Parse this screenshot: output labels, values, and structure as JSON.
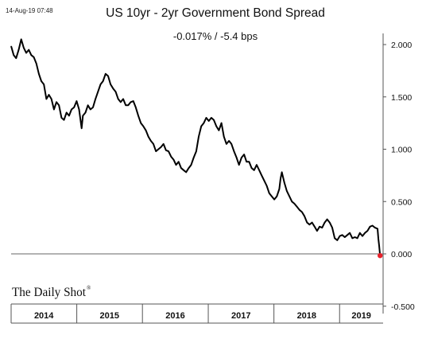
{
  "header": {
    "timestamp": "14-Aug-19 07:48"
  },
  "watermark": {
    "text": "The Daily Shot",
    "mark": "®"
  },
  "chart_data": {
    "type": "line",
    "title": "US 10yr - 2yr Government Bond Spread",
    "subtitle": "-0.017%  /  -5.4 bps",
    "xlabel": "",
    "ylabel": "",
    "ylim": [
      -0.5,
      2.1
    ],
    "y_ticks": [
      "2.000",
      "1.500",
      "1.000",
      "0.500",
      "0.000",
      "-0.500"
    ],
    "y_tick_values": [
      2.0,
      1.5,
      1.0,
      0.5,
      0.0,
      -0.5
    ],
    "x_range": [
      "2014-01-01",
      "2019-08-31"
    ],
    "year_bands": [
      {
        "label": "2014",
        "start": "2014-01-01",
        "end": "2014-12-31"
      },
      {
        "label": "2015",
        "start": "2015-01-01",
        "end": "2015-12-31"
      },
      {
        "label": "2016",
        "start": "2016-01-01",
        "end": "2016-12-31"
      },
      {
        "label": "2017",
        "start": "2017-01-01",
        "end": "2017-12-31"
      },
      {
        "label": "2018",
        "start": "2018-01-01",
        "end": "2018-12-31"
      },
      {
        "label": "2019",
        "start": "2019-01-01",
        "end": "2019-08-31"
      }
    ],
    "series": [
      {
        "line_color": "#000000",
        "points": [
          [
            "2014-01-02",
            1.98
          ],
          [
            "2014-01-15",
            1.9
          ],
          [
            "2014-01-29",
            1.87
          ],
          [
            "2014-02-12",
            1.95
          ],
          [
            "2014-02-26",
            2.05
          ],
          [
            "2014-03-12",
            1.97
          ],
          [
            "2014-03-26",
            1.92
          ],
          [
            "2014-04-09",
            1.95
          ],
          [
            "2014-04-23",
            1.9
          ],
          [
            "2014-05-07",
            1.88
          ],
          [
            "2014-05-21",
            1.82
          ],
          [
            "2014-06-04",
            1.72
          ],
          [
            "2014-06-18",
            1.65
          ],
          [
            "2014-07-02",
            1.62
          ],
          [
            "2014-07-16",
            1.48
          ],
          [
            "2014-07-30",
            1.52
          ],
          [
            "2014-08-13",
            1.48
          ],
          [
            "2014-08-27",
            1.38
          ],
          [
            "2014-09-10",
            1.45
          ],
          [
            "2014-09-24",
            1.42
          ],
          [
            "2014-10-08",
            1.3
          ],
          [
            "2014-10-22",
            1.28
          ],
          [
            "2014-11-05",
            1.35
          ],
          [
            "2014-11-19",
            1.32
          ],
          [
            "2014-12-03",
            1.38
          ],
          [
            "2014-12-17",
            1.4
          ],
          [
            "2014-12-31",
            1.46
          ],
          [
            "2015-01-14",
            1.38
          ],
          [
            "2015-01-28",
            1.2
          ],
          [
            "2015-02-04",
            1.32
          ],
          [
            "2015-02-18",
            1.35
          ],
          [
            "2015-03-04",
            1.42
          ],
          [
            "2015-03-18",
            1.38
          ],
          [
            "2015-04-01",
            1.4
          ],
          [
            "2015-04-15",
            1.48
          ],
          [
            "2015-04-29",
            1.55
          ],
          [
            "2015-05-13",
            1.62
          ],
          [
            "2015-05-27",
            1.65
          ],
          [
            "2015-06-10",
            1.72
          ],
          [
            "2015-06-24",
            1.7
          ],
          [
            "2015-07-08",
            1.62
          ],
          [
            "2015-07-22",
            1.58
          ],
          [
            "2015-08-05",
            1.55
          ],
          [
            "2015-08-19",
            1.48
          ],
          [
            "2015-09-02",
            1.45
          ],
          [
            "2015-09-16",
            1.48
          ],
          [
            "2015-09-30",
            1.42
          ],
          [
            "2015-10-14",
            1.42
          ],
          [
            "2015-10-28",
            1.45
          ],
          [
            "2015-11-11",
            1.46
          ],
          [
            "2015-11-25",
            1.4
          ],
          [
            "2015-12-09",
            1.32
          ],
          [
            "2015-12-23",
            1.25
          ],
          [
            "2016-01-06",
            1.22
          ],
          [
            "2016-01-20",
            1.18
          ],
          [
            "2016-02-03",
            1.12
          ],
          [
            "2016-02-17",
            1.08
          ],
          [
            "2016-03-02",
            1.05
          ],
          [
            "2016-03-16",
            0.98
          ],
          [
            "2016-03-30",
            1.0
          ],
          [
            "2016-04-13",
            1.02
          ],
          [
            "2016-04-27",
            1.05
          ],
          [
            "2016-05-11",
            0.99
          ],
          [
            "2016-05-25",
            0.98
          ],
          [
            "2016-06-08",
            0.93
          ],
          [
            "2016-06-22",
            0.9
          ],
          [
            "2016-07-06",
            0.85
          ],
          [
            "2016-07-20",
            0.88
          ],
          [
            "2016-08-03",
            0.82
          ],
          [
            "2016-08-17",
            0.8
          ],
          [
            "2016-08-31",
            0.78
          ],
          [
            "2016-09-14",
            0.82
          ],
          [
            "2016-09-28",
            0.85
          ],
          [
            "2016-10-12",
            0.92
          ],
          [
            "2016-10-26",
            0.98
          ],
          [
            "2016-11-09",
            1.12
          ],
          [
            "2016-11-23",
            1.22
          ],
          [
            "2016-12-07",
            1.25
          ],
          [
            "2016-12-21",
            1.3
          ],
          [
            "2017-01-04",
            1.27
          ],
          [
            "2017-01-18",
            1.3
          ],
          [
            "2017-02-01",
            1.28
          ],
          [
            "2017-02-15",
            1.22
          ],
          [
            "2017-03-01",
            1.18
          ],
          [
            "2017-03-15",
            1.25
          ],
          [
            "2017-03-29",
            1.12
          ],
          [
            "2017-04-12",
            1.05
          ],
          [
            "2017-04-26",
            1.08
          ],
          [
            "2017-05-10",
            1.05
          ],
          [
            "2017-05-24",
            0.98
          ],
          [
            "2017-06-07",
            0.92
          ],
          [
            "2017-06-21",
            0.85
          ],
          [
            "2017-07-05",
            0.92
          ],
          [
            "2017-07-19",
            0.95
          ],
          [
            "2017-08-02",
            0.88
          ],
          [
            "2017-08-16",
            0.88
          ],
          [
            "2017-08-30",
            0.82
          ],
          [
            "2017-09-13",
            0.8
          ],
          [
            "2017-09-27",
            0.85
          ],
          [
            "2017-10-11",
            0.8
          ],
          [
            "2017-10-25",
            0.75
          ],
          [
            "2017-11-08",
            0.7
          ],
          [
            "2017-11-22",
            0.65
          ],
          [
            "2017-12-06",
            0.58
          ],
          [
            "2017-12-20",
            0.55
          ],
          [
            "2018-01-03",
            0.52
          ],
          [
            "2018-01-17",
            0.55
          ],
          [
            "2018-01-31",
            0.62
          ],
          [
            "2018-02-07",
            0.72
          ],
          [
            "2018-02-14",
            0.78
          ],
          [
            "2018-02-28",
            0.68
          ],
          [
            "2018-03-14",
            0.6
          ],
          [
            "2018-03-28",
            0.55
          ],
          [
            "2018-04-11",
            0.5
          ],
          [
            "2018-04-25",
            0.48
          ],
          [
            "2018-05-09",
            0.45
          ],
          [
            "2018-05-23",
            0.42
          ],
          [
            "2018-06-06",
            0.4
          ],
          [
            "2018-06-20",
            0.36
          ],
          [
            "2018-07-04",
            0.3
          ],
          [
            "2018-07-18",
            0.28
          ],
          [
            "2018-08-01",
            0.3
          ],
          [
            "2018-08-15",
            0.26
          ],
          [
            "2018-08-29",
            0.22
          ],
          [
            "2018-09-12",
            0.26
          ],
          [
            "2018-09-26",
            0.25
          ],
          [
            "2018-10-10",
            0.3
          ],
          [
            "2018-10-24",
            0.33
          ],
          [
            "2018-11-07",
            0.3
          ],
          [
            "2018-11-21",
            0.25
          ],
          [
            "2018-12-05",
            0.15
          ],
          [
            "2018-12-19",
            0.13
          ],
          [
            "2019-01-02",
            0.17
          ],
          [
            "2019-01-16",
            0.18
          ],
          [
            "2019-01-30",
            0.16
          ],
          [
            "2019-02-13",
            0.18
          ],
          [
            "2019-02-27",
            0.2
          ],
          [
            "2019-03-13",
            0.15
          ],
          [
            "2019-03-27",
            0.16
          ],
          [
            "2019-04-10",
            0.15
          ],
          [
            "2019-04-24",
            0.2
          ],
          [
            "2019-05-08",
            0.17
          ],
          [
            "2019-05-22",
            0.2
          ],
          [
            "2019-06-05",
            0.22
          ],
          [
            "2019-06-19",
            0.26
          ],
          [
            "2019-07-03",
            0.27
          ],
          [
            "2019-07-17",
            0.25
          ],
          [
            "2019-07-31",
            0.24
          ],
          [
            "2019-08-05",
            0.14
          ],
          [
            "2019-08-09",
            0.08
          ],
          [
            "2019-08-14",
            -0.017
          ]
        ]
      }
    ],
    "last_point_marker": {
      "date": "2019-08-14",
      "value": -0.017,
      "color": "#e8212b"
    },
    "grid": false,
    "zero_line": true
  }
}
